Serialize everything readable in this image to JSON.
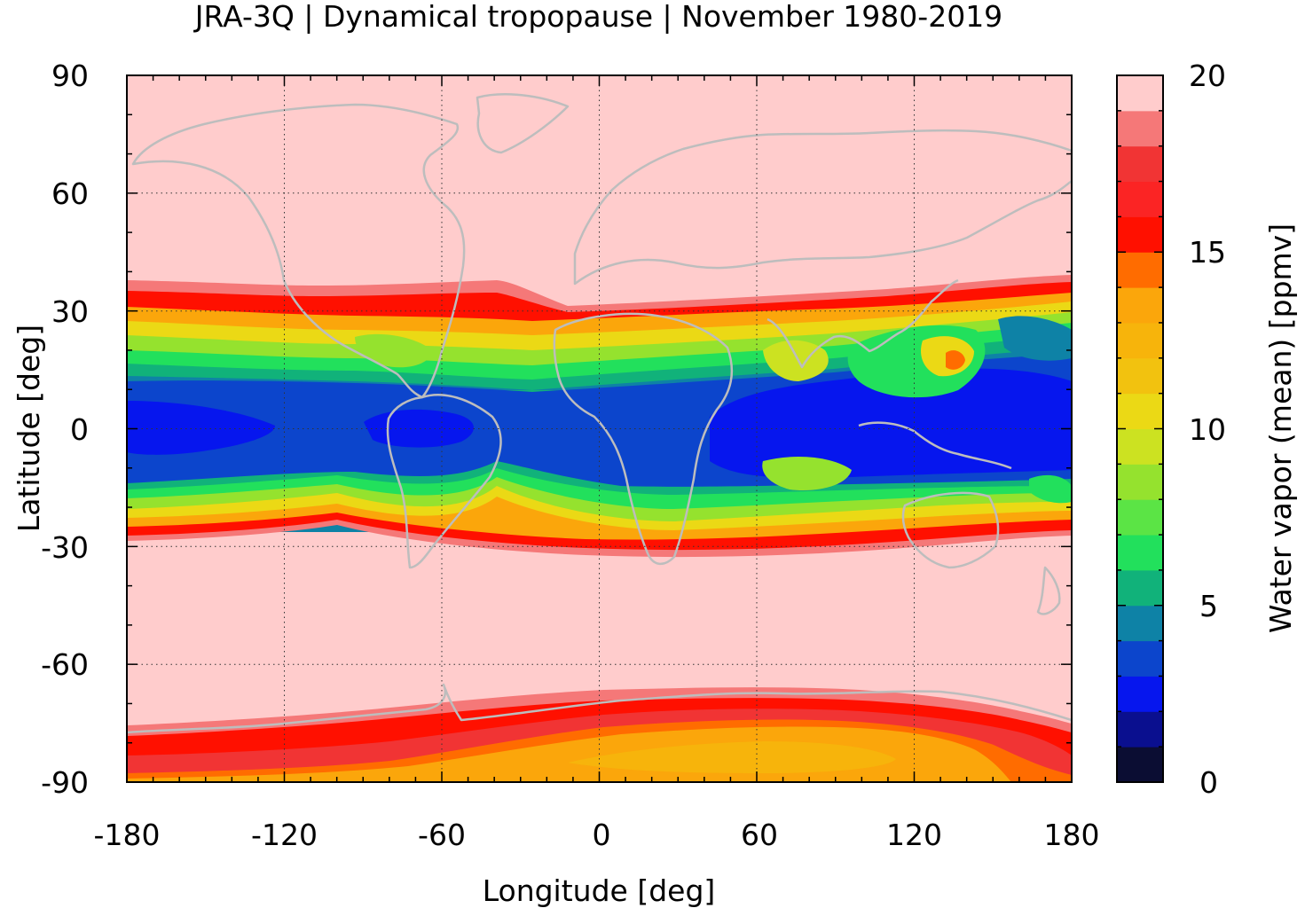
{
  "title": "JRA-3Q | Dynamical tropopause | November 1980-2019",
  "map": {
    "xlabel": "Longitude [deg]",
    "ylabel": "Latitude [deg]",
    "xlim": [
      -180,
      180
    ],
    "ylim": [
      -90,
      90
    ],
    "xticks": [
      "-180",
      "-120",
      "-60",
      "0",
      "60",
      "120",
      "180"
    ],
    "yticks": [
      "90",
      "60",
      "30",
      "0",
      "-30",
      "-60",
      "-90"
    ],
    "grid": "dotted",
    "coastline_color": "#bdbdbd"
  },
  "colorbar": {
    "label": "Water vapor (mean) [ppmv]",
    "range": [
      0,
      20
    ],
    "ticks": [
      "0",
      "5",
      "10",
      "15",
      "20"
    ],
    "levels": [
      "#0b0d33",
      "#0a0f8f",
      "#0616ee",
      "#0c45cc",
      "#0e82a6",
      "#11b27a",
      "#22e05c",
      "#5be445",
      "#95e22e",
      "#cce221",
      "#ebd915",
      "#f2c20f",
      "#f7b40b",
      "#fba60b",
      "#ff6c00",
      "#ff1000",
      "#fb2424",
      "#f13434",
      "#f57878",
      "#ffcccc"
    ]
  }
}
